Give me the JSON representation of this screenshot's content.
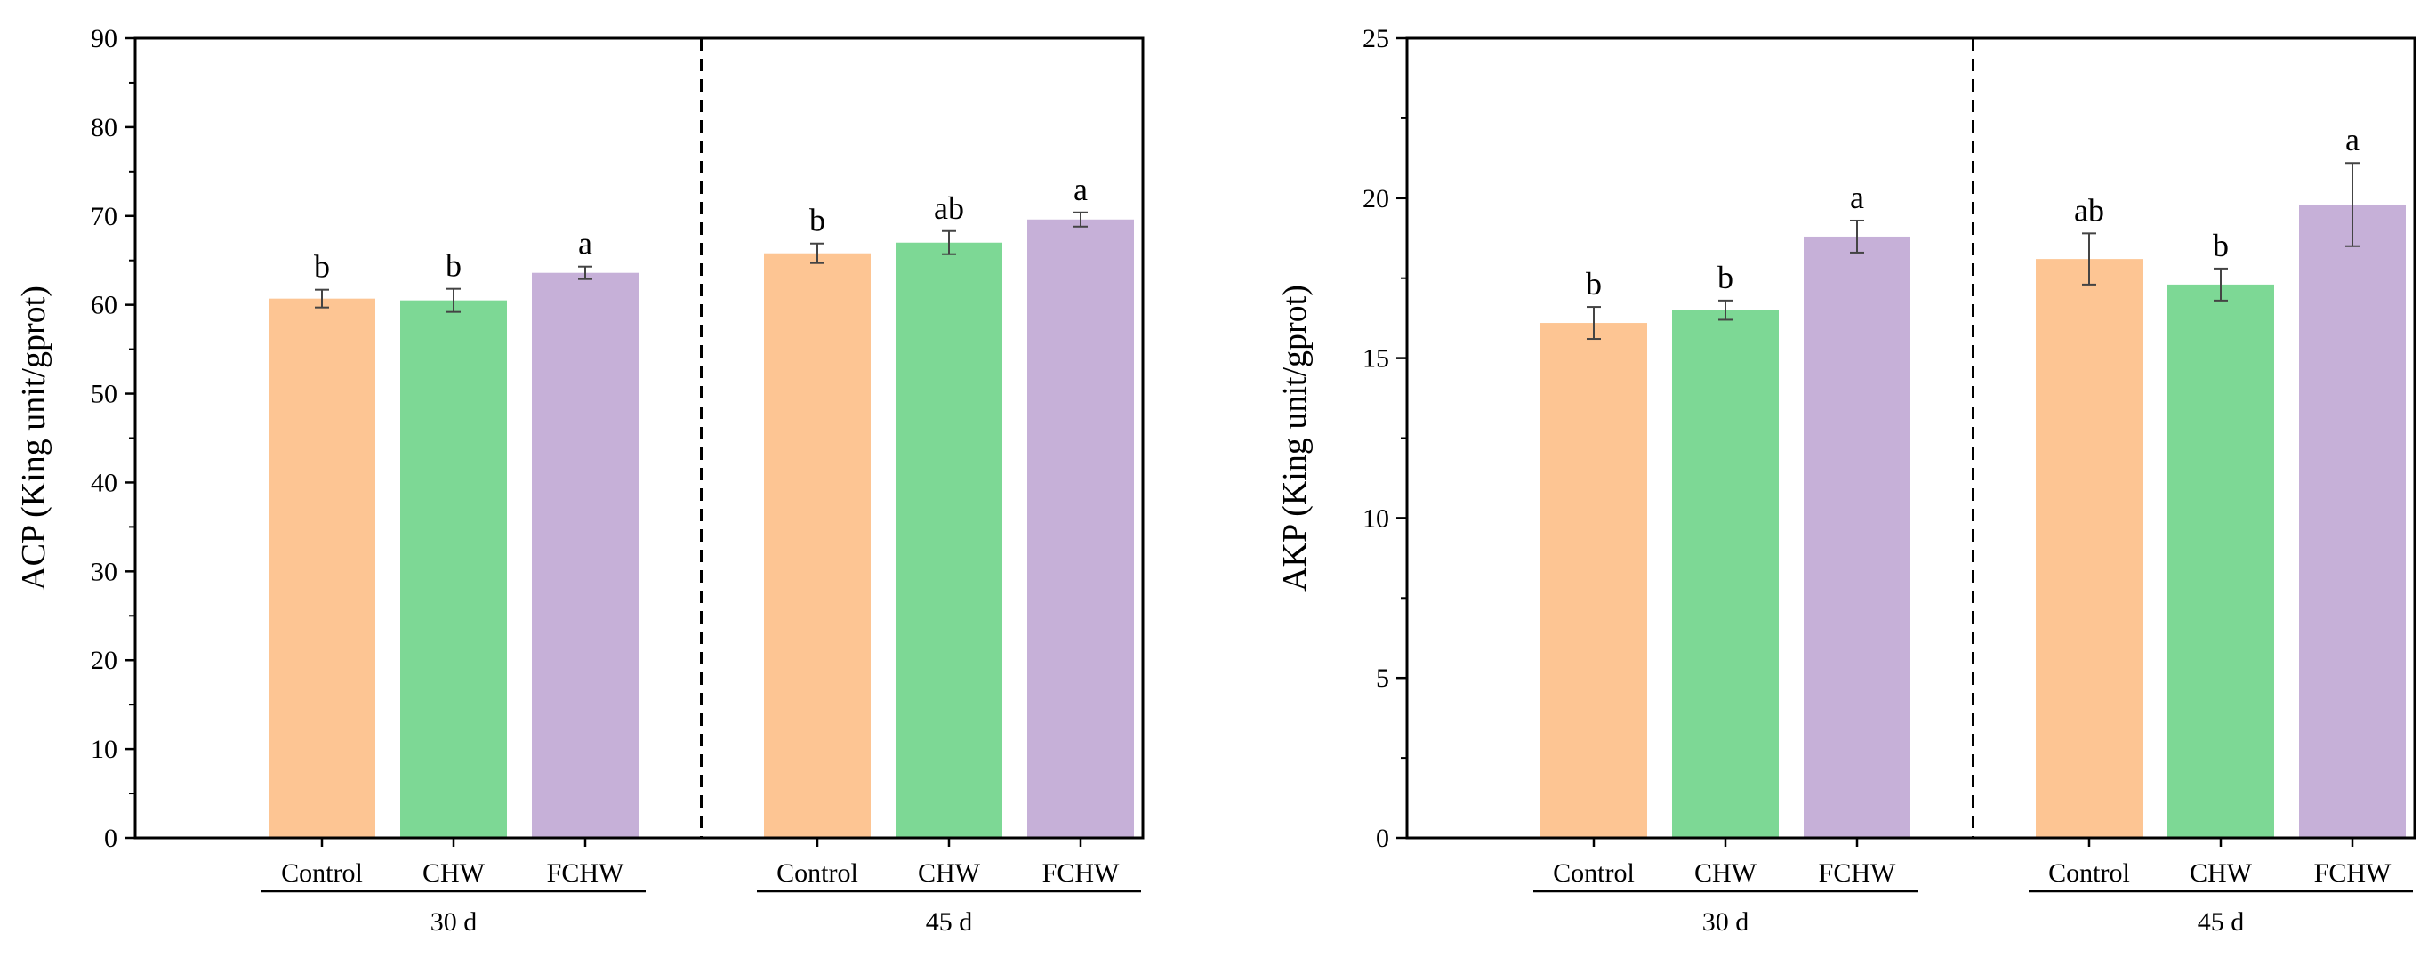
{
  "colors": {
    "Control": "#fdc593",
    "CHW": "#7dd895",
    "FCHW": "#c6b0d8",
    "axis": "#000000",
    "error_bar": "#444444"
  },
  "chart_data": [
    {
      "type": "bar",
      "ylabel": "ACP (King unit/gprot)",
      "ylim": [
        0,
        90
      ],
      "yticks": [
        0,
        10,
        20,
        30,
        40,
        50,
        60,
        70,
        80,
        90
      ],
      "groups": [
        {
          "label": "30 d",
          "bars": [
            {
              "category": "Control",
              "value": 60.7,
              "error": 1.0,
              "sig": "b"
            },
            {
              "category": "CHW",
              "value": 60.5,
              "error": 1.3,
              "sig": "b"
            },
            {
              "category": "FCHW",
              "value": 63.6,
              "error": 0.7,
              "sig": "a"
            }
          ]
        },
        {
          "label": "45 d",
          "bars": [
            {
              "category": "Control",
              "value": 65.8,
              "error": 1.1,
              "sig": "b"
            },
            {
              "category": "CHW",
              "value": 67.0,
              "error": 1.3,
              "sig": "ab"
            },
            {
              "category": "FCHW",
              "value": 69.6,
              "error": 0.8,
              "sig": "a"
            }
          ]
        }
      ]
    },
    {
      "type": "bar",
      "ylabel": "AKP (King unit/gprot)",
      "ylim": [
        0,
        25
      ],
      "yticks": [
        0,
        5,
        10,
        15,
        20,
        25
      ],
      "groups": [
        {
          "label": "30 d",
          "bars": [
            {
              "category": "Control",
              "value": 16.1,
              "error": 0.5,
              "sig": "b"
            },
            {
              "category": "CHW",
              "value": 16.5,
              "error": 0.3,
              "sig": "b"
            },
            {
              "category": "FCHW",
              "value": 18.8,
              "error": 0.5,
              "sig": "a"
            }
          ]
        },
        {
          "label": "45 d",
          "bars": [
            {
              "category": "Control",
              "value": 18.1,
              "error": 0.8,
              "sig": "ab"
            },
            {
              "category": "CHW",
              "value": 17.3,
              "error": 0.5,
              "sig": "b"
            },
            {
              "category": "FCHW",
              "value": 19.8,
              "error": 1.3,
              "sig": "a"
            }
          ]
        }
      ]
    }
  ]
}
